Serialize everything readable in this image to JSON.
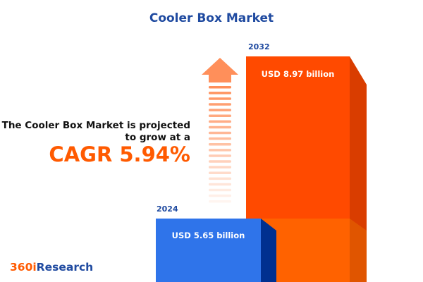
{
  "title": "Cooler Box Market",
  "description_line1": "The Cooler Box Market is projected",
  "description_line2": "to grow at a",
  "cagr": "CAGR 5.94%",
  "logo": {
    "part1": "360i",
    "part2": "Research"
  },
  "colors": {
    "bar_2024": "#2f74ea",
    "bar_2032": "#ff4a00",
    "accent": "#ff5a00",
    "title": "#1f4aa0"
  },
  "chart_data": {
    "type": "bar",
    "categories": [
      "2024",
      "2032"
    ],
    "values": [
      5.65,
      8.97
    ],
    "unit": "USD billion",
    "data_labels": [
      "USD 5.65 billion",
      "USD 8.97 billion"
    ],
    "cagr_percent": 5.94
  }
}
